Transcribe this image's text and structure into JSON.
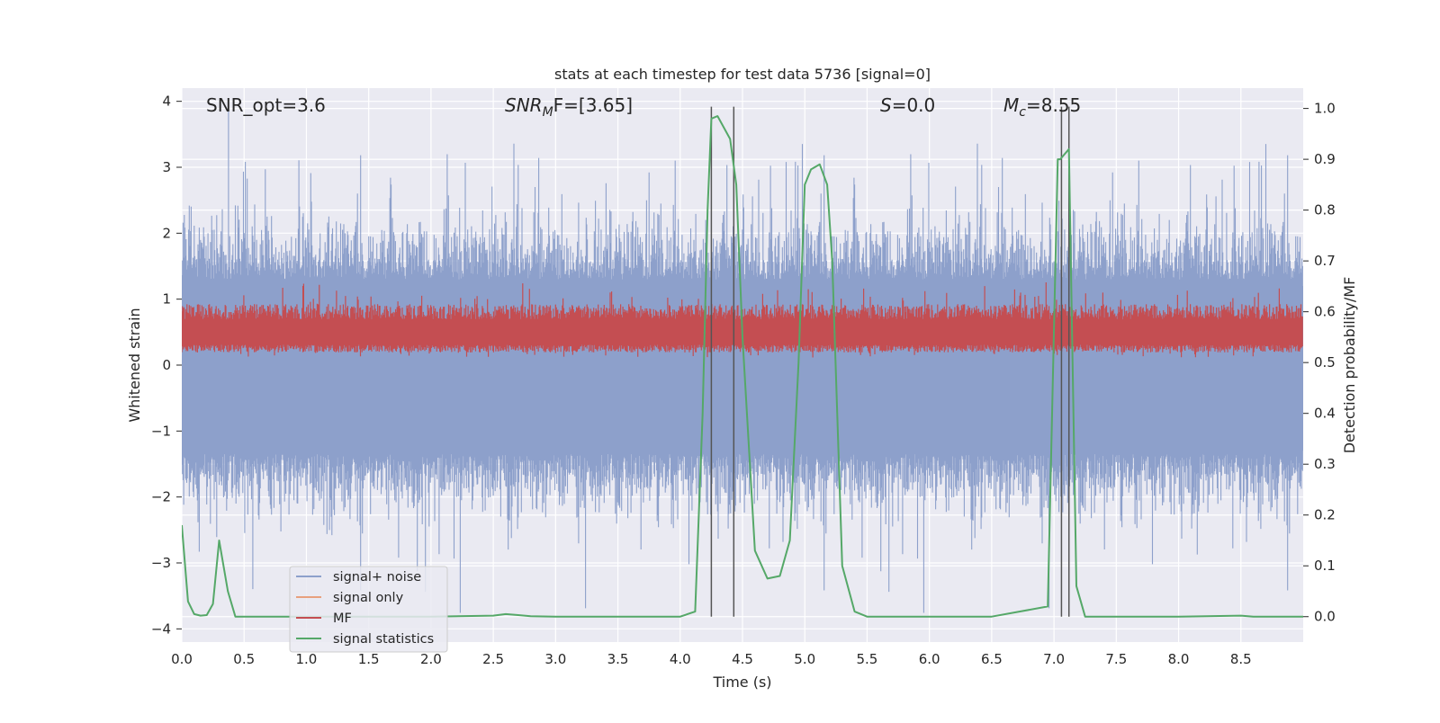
{
  "chart_data": {
    "type": "line",
    "title": "stats at each timestep for test data 5736 [signal=0]",
    "xlabel": "Time (s)",
    "ylabel_left": "Whitened strain",
    "ylabel_right": "Detection probability/MF",
    "xlim": [
      0.0,
      9.0
    ],
    "ylim_left": [
      -4.2,
      4.2
    ],
    "ylim_right": [
      -0.05,
      1.04
    ],
    "x_ticks": [
      "0.0",
      "0.5",
      "1.0",
      "1.5",
      "2.0",
      "2.5",
      "3.0",
      "3.5",
      "4.0",
      "4.5",
      "5.0",
      "5.5",
      "6.0",
      "6.5",
      "7.0",
      "7.5",
      "8.0",
      "8.5"
    ],
    "y_ticks_left": [
      "4",
      "3",
      "2",
      "1",
      "0",
      "−1",
      "−2",
      "−3",
      "−4"
    ],
    "y_ticks_right": [
      "1.0",
      "0.9",
      "0.8",
      "0.7",
      "0.6",
      "0.5",
      "0.4",
      "0.3",
      "0.2",
      "0.1",
      "0.0"
    ],
    "annotations": {
      "snr_opt": "SNR_opt=3.6",
      "snr_mf_main": "SNR",
      "snr_mf_sub": "M",
      "snr_mf_rest": "F=[3.65]",
      "s_stat_main": "S",
      "s_stat_rest": "=0.0",
      "mc_main": "M",
      "mc_sub": "c",
      "mc_rest": "=8.55"
    },
    "legend": [
      "signal+ noise",
      "signal only",
      "MF",
      "signal statistics"
    ],
    "colors": {
      "signal_noise": "#8da0cb",
      "signal_only": "#e8a07e",
      "mf": "#c44e52",
      "signal_statistics": "#55a868",
      "vlines": "#555555",
      "plot_bg": "#eaeaf2",
      "grid": "#ffffff"
    },
    "series": [
      {
        "name": "signal+ noise",
        "description_values": {
          "amplitude_envelope": [
            -2.8,
            3.9
          ],
          "typical_range": [
            -2.0,
            2.3
          ]
        }
      },
      {
        "name": "signal only",
        "values": []
      },
      {
        "name": "MF",
        "description_values": {
          "typical_range_right_axis": [
            0.51,
            0.62
          ]
        }
      },
      {
        "name": "signal statistics",
        "axis": "right",
        "x": [
          0.0,
          0.05,
          0.1,
          0.15,
          0.2,
          0.25,
          0.3,
          0.37,
          0.43,
          0.5,
          0.6,
          1.0,
          1.5,
          2.0,
          2.5,
          2.6,
          2.7,
          2.8,
          3.0,
          3.5,
          4.0,
          4.12,
          4.18,
          4.22,
          4.25,
          4.3,
          4.4,
          4.45,
          4.5,
          4.6,
          4.7,
          4.8,
          4.88,
          4.95,
          5.0,
          5.05,
          5.12,
          5.18,
          5.22,
          5.3,
          5.4,
          5.5,
          5.6,
          6.0,
          6.5,
          6.95,
          7.03,
          7.05,
          7.12,
          7.18,
          7.25,
          7.5,
          8.0,
          8.5,
          8.6,
          9.0
        ],
        "values": [
          0.18,
          0.03,
          0.005,
          0.002,
          0.003,
          0.025,
          0.15,
          0.05,
          0.0,
          0.0,
          0.0,
          0.0,
          0.0,
          0.0,
          0.002,
          0.005,
          0.003,
          0.001,
          0.0,
          0.0,
          0.0,
          0.01,
          0.4,
          0.8,
          0.98,
          0.985,
          0.94,
          0.85,
          0.55,
          0.13,
          0.075,
          0.08,
          0.15,
          0.5,
          0.85,
          0.88,
          0.89,
          0.85,
          0.7,
          0.1,
          0.01,
          0.0,
          0.0,
          0.0,
          0.0,
          0.02,
          0.9,
          0.9,
          0.92,
          0.06,
          0.0,
          0.0,
          0.0,
          0.002,
          0.0,
          0.0
        ]
      }
    ],
    "vertical_lines_x": [
      4.25,
      4.43,
      7.06,
      7.12
    ]
  }
}
